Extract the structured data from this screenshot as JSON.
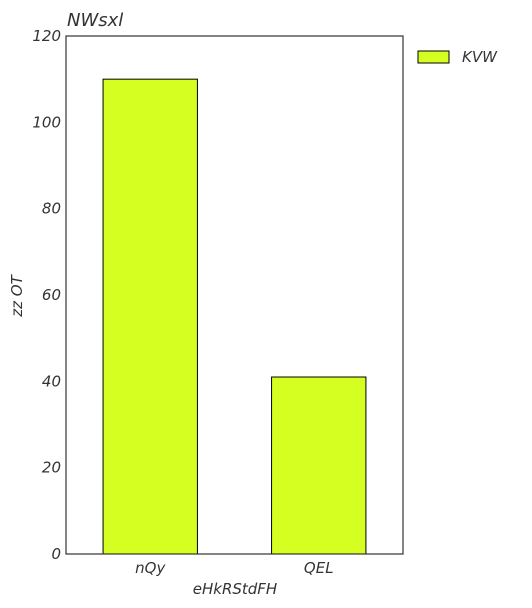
{
  "chart_data": {
    "type": "bar",
    "title": "NWsxl",
    "xlabel": "eHkRStdFH",
    "ylabel": "zz OT",
    "categories": [
      "nQy",
      "QEL"
    ],
    "series": [
      {
        "name": "KVW",
        "values": [
          110,
          41
        ]
      }
    ],
    "ylim": [
      0,
      120
    ],
    "yticks": [
      0,
      20,
      40,
      60,
      80,
      100,
      120
    ],
    "grid": false,
    "legend_position": "outside-top-right",
    "colors": {
      "bar_fill": "#d4ff21",
      "bar_edge": "#000000",
      "axes": "#333333",
      "text": "#333333"
    }
  }
}
